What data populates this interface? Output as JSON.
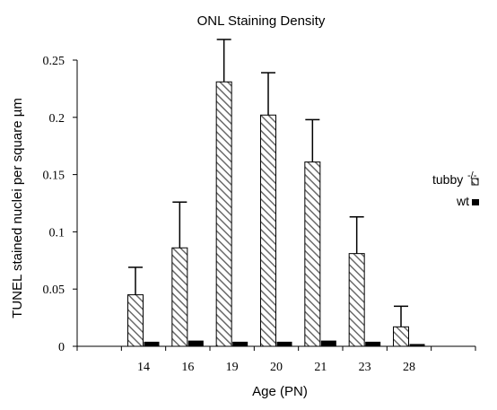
{
  "chart_data": {
    "type": "bar",
    "title": "ONL Staining Density",
    "xlabel": "Age (PN)",
    "ylabel": "TUNEL stained nuclei per square µm",
    "categories": [
      "14",
      "16",
      "19",
      "20",
      "21",
      "23",
      "28"
    ],
    "series": [
      {
        "name": "tubby",
        "name_sup": "-/-",
        "pattern": "diagonal-hatch",
        "values": [
          0.045,
          0.086,
          0.231,
          0.202,
          0.161,
          0.081,
          0.017
        ],
        "error": [
          0.024,
          0.04,
          0.037,
          0.037,
          0.037,
          0.032,
          0.018
        ]
      },
      {
        "name": "wt",
        "pattern": "solid",
        "color": "#000000",
        "values": [
          0.004,
          0.005,
          0.004,
          0.004,
          0.005,
          0.004,
          0.002
        ]
      }
    ],
    "ylim": [
      0,
      0.25
    ],
    "yticks": [
      "0",
      "0.05",
      "0.1",
      "0.15",
      "0.2",
      "0.25"
    ],
    "legend_position": "right",
    "grid": false
  }
}
